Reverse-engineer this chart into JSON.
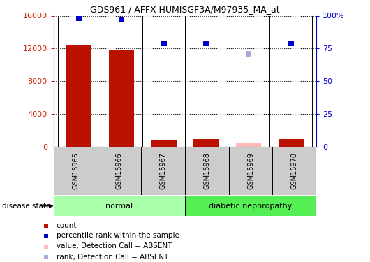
{
  "title": "GDS961 / AFFX-HUMISGF3A/M97935_MA_at",
  "samples": [
    "GSM15965",
    "GSM15966",
    "GSM15967",
    "GSM15968",
    "GSM15969",
    "GSM15970"
  ],
  "bar_values": [
    12500,
    11800,
    800,
    900,
    400,
    900
  ],
  "bar_colors": [
    "#bb1100",
    "#bb1100",
    "#bb1100",
    "#bb1100",
    "#ffbbbb",
    "#bb1100"
  ],
  "rank_values": [
    98,
    97,
    79,
    79,
    71,
    79
  ],
  "rank_colors": [
    "#0000cc",
    "#0000cc",
    "#0000cc",
    "#0000cc",
    "#aaaadd",
    "#0000cc"
  ],
  "ylim_left": [
    0,
    16000
  ],
  "ylim_right": [
    0,
    100
  ],
  "yticks_left": [
    0,
    4000,
    8000,
    12000,
    16000
  ],
  "yticks_right": [
    0,
    25,
    50,
    75,
    100
  ],
  "yticklabels_right": [
    "0",
    "25",
    "50",
    "75",
    "100%"
  ],
  "groups": [
    {
      "label": "normal",
      "samples": [
        0,
        1,
        2
      ],
      "color": "#aaffaa"
    },
    {
      "label": "diabetic nephropathy",
      "samples": [
        3,
        4,
        5
      ],
      "color": "#55ee55"
    }
  ],
  "legend_items": [
    {
      "color": "#bb1100",
      "label": "count"
    },
    {
      "color": "#0000cc",
      "label": "percentile rank within the sample"
    },
    {
      "color": "#ffbbbb",
      "label": "value, Detection Call = ABSENT"
    },
    {
      "color": "#aaaadd",
      "label": "rank, Detection Call = ABSENT"
    }
  ],
  "disease_state_label": "disease state",
  "background_color": "#ffffff",
  "left_axis_color": "#cc2200",
  "right_axis_color": "#0000cc",
  "sample_box_color": "#cccccc",
  "bar_width": 0.6
}
